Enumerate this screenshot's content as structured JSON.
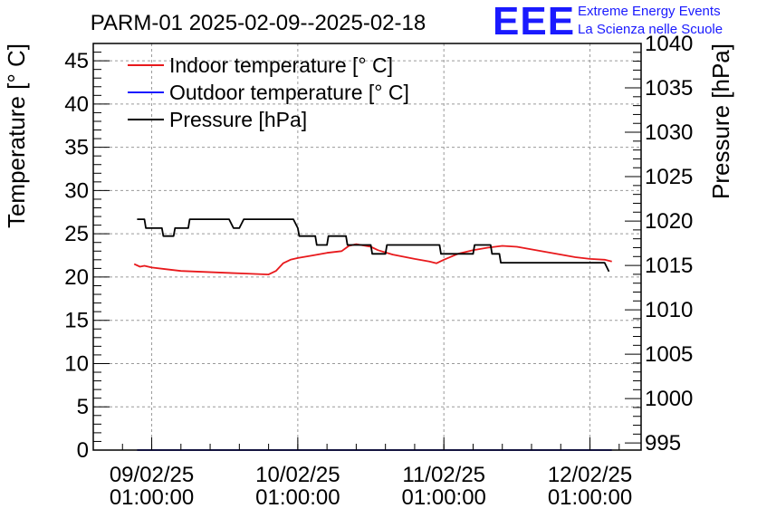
{
  "logo": {
    "mark": "EEE",
    "line1": "Extreme Energy Events",
    "line2": "La Scienza nelle Scuole"
  },
  "chart_data": {
    "type": "line",
    "title": "PARM-01 2025-02-09--2025-02-18",
    "ylabel": "Temperature [° C]",
    "y2label": "Pressure [hPa]",
    "ylim": [
      0,
      47
    ],
    "y2lim": [
      994.2,
      1040
    ],
    "xlim": [
      -0.4,
      3.35
    ],
    "yticks": [
      0,
      5,
      10,
      15,
      20,
      25,
      30,
      35,
      40,
      45
    ],
    "y2ticks": [
      995,
      1000,
      1005,
      1010,
      1015,
      1020,
      1025,
      1030,
      1035,
      1040
    ],
    "xticks": [
      {
        "value": 0,
        "line1": "09/02/25",
        "line2": "01:00:00"
      },
      {
        "value": 1,
        "line1": "10/02/25",
        "line2": "01:00:00"
      },
      {
        "value": 2,
        "line1": "11/02/25",
        "line2": "01:00:00"
      },
      {
        "value": 3,
        "line1": "12/02/25",
        "line2": "01:00:00"
      }
    ],
    "grid": true,
    "legend_position": "top-left",
    "series": [
      {
        "name": "Indoor temperature [° C]",
        "color": "#e8191c",
        "axis": "left",
        "x": [
          -0.12,
          -0.08,
          -0.05,
          0.0,
          0.1,
          0.2,
          0.35,
          0.5,
          0.65,
          0.8,
          0.85,
          0.9,
          0.95,
          1.0,
          1.1,
          1.2,
          1.3,
          1.35,
          1.4,
          1.5,
          1.55,
          1.65,
          1.8,
          1.9,
          1.95,
          2.0,
          2.1,
          2.2,
          2.3,
          2.4,
          2.5,
          2.6,
          2.7,
          2.8,
          2.9,
          3.0,
          3.1,
          3.15
        ],
        "y": [
          21.5,
          21.2,
          21.3,
          21.1,
          20.9,
          20.7,
          20.6,
          20.5,
          20.4,
          20.3,
          20.7,
          21.6,
          22.0,
          22.2,
          22.5,
          22.8,
          23.0,
          23.6,
          23.8,
          23.5,
          23.1,
          22.6,
          22.1,
          21.8,
          21.6,
          22.0,
          22.7,
          23.1,
          23.4,
          23.6,
          23.5,
          23.2,
          22.9,
          22.6,
          22.3,
          22.1,
          22.0,
          21.8
        ]
      },
      {
        "name": "Outdoor temperature [° C]",
        "color": "#1a1aff",
        "axis": "left",
        "x": [
          -0.1,
          3.15
        ],
        "y": [
          0.0,
          0.0
        ]
      },
      {
        "name": "Pressure [hPa]",
        "color": "#000000",
        "axis": "right",
        "x": [
          -0.1,
          -0.05,
          -0.04,
          0.07,
          0.08,
          0.15,
          0.16,
          0.2,
          0.25,
          0.26,
          0.53,
          0.56,
          0.6,
          0.63,
          0.97,
          1.0,
          1.01,
          1.12,
          1.13,
          1.2,
          1.21,
          1.33,
          1.34,
          1.5,
          1.51,
          1.6,
          1.61,
          1.97,
          1.98,
          2.2,
          2.21,
          2.32,
          2.33,
          2.38,
          2.39,
          2.45,
          2.46,
          3.05,
          3.1,
          3.13
        ],
        "y": [
          1020.2,
          1020.2,
          1019.2,
          1019.2,
          1018.3,
          1018.3,
          1019.2,
          1019.2,
          1019.2,
          1020.2,
          1020.2,
          1019.2,
          1019.2,
          1020.2,
          1020.2,
          1019.2,
          1018.3,
          1018.3,
          1017.3,
          1017.3,
          1018.3,
          1018.3,
          1017.3,
          1017.3,
          1016.3,
          1016.3,
          1017.3,
          1017.3,
          1016.3,
          1016.3,
          1017.3,
          1017.3,
          1016.3,
          1016.3,
          1015.3,
          1015.3,
          1015.3,
          1015.3,
          1015.3,
          1014.3
        ]
      }
    ]
  }
}
